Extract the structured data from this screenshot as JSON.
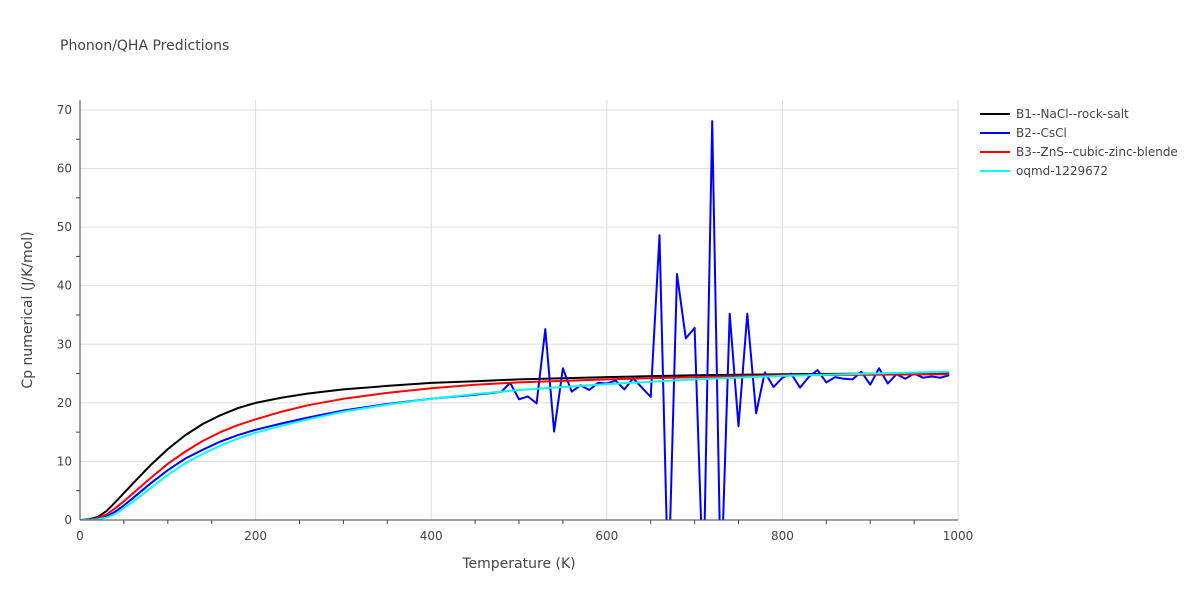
{
  "chart_data": {
    "type": "line",
    "title": "Phonon/QHA Predictions",
    "xlabel": "Temperature (K)",
    "ylabel": "Cp numerical (J/K/mol)",
    "xlim": [
      0,
      1000
    ],
    "ylim": [
      0,
      72
    ],
    "xticks": [
      0,
      200,
      400,
      600,
      800,
      1000
    ],
    "yticks": [
      0,
      10,
      20,
      30,
      40,
      50,
      60,
      70
    ],
    "grid": true,
    "legend_position": "top-right",
    "series": [
      {
        "name": "B1--NaCl--rock-salt",
        "color": "#000000",
        "x": [
          0,
          10,
          20,
          30,
          40,
          50,
          60,
          80,
          100,
          120,
          140,
          160,
          180,
          200,
          230,
          260,
          300,
          350,
          400,
          450,
          500,
          600,
          700,
          800,
          900,
          990
        ],
        "y": [
          0,
          0.1,
          0.5,
          1.5,
          3,
          4.6,
          6.2,
          9.3,
          12.1,
          14.5,
          16.4,
          17.9,
          19.1,
          20.0,
          20.9,
          21.6,
          22.3,
          22.9,
          23.4,
          23.7,
          24.0,
          24.4,
          24.7,
          24.9,
          25.0,
          25.1
        ]
      },
      {
        "name": "B2--CsCl",
        "color": "#0000ff",
        "x": [
          0,
          10,
          20,
          30,
          40,
          50,
          60,
          80,
          100,
          120,
          140,
          160,
          180,
          200,
          230,
          260,
          300,
          350,
          400,
          450,
          470,
          480,
          490,
          500,
          510,
          520,
          530,
          540,
          550,
          560,
          570,
          580,
          590,
          600,
          610,
          620,
          630,
          640,
          650,
          660,
          670,
          680,
          690,
          700,
          710,
          720,
          730,
          740,
          750,
          760,
          770,
          780,
          790,
          800,
          810,
          820,
          830,
          840,
          850,
          860,
          870,
          880,
          890,
          900,
          910,
          920,
          930,
          940,
          950,
          960,
          970,
          980,
          990
        ],
        "y": [
          0,
          0,
          0.2,
          0.6,
          1.4,
          2.5,
          3.7,
          6.2,
          8.5,
          10.5,
          12.0,
          13.4,
          14.5,
          15.4,
          16.5,
          17.5,
          18.7,
          19.8,
          20.7,
          21.4,
          21.7,
          21.9,
          23.4,
          20.6,
          21.1,
          19.9,
          32.6,
          15.1,
          25.9,
          21.9,
          23.0,
          22.2,
          23.4,
          23.3,
          23.8,
          22.3,
          24.2,
          22.6,
          21.0,
          48.6,
          -12,
          42.0,
          31.0,
          32.8,
          -12,
          68.1,
          -12,
          35.2,
          16.0,
          35.2,
          18.2,
          25.2,
          22.7,
          24.3,
          25.0,
          22.6,
          24.4,
          25.6,
          23.5,
          24.4,
          24.1,
          24.0,
          25.3,
          23.1,
          25.9,
          23.3,
          24.9,
          24.1,
          25.0,
          24.3,
          24.5,
          24.3,
          24.7
        ]
      },
      {
        "name": "B3--ZnS--cubic-zinc-blende",
        "color": "#ff0000",
        "x": [
          0,
          10,
          20,
          30,
          40,
          50,
          60,
          80,
          100,
          120,
          140,
          160,
          180,
          200,
          230,
          260,
          300,
          350,
          400,
          450,
          500,
          600,
          700,
          800,
          900,
          990
        ],
        "y": [
          0,
          0,
          0.3,
          0.9,
          2.0,
          3.2,
          4.5,
          7.1,
          9.6,
          11.7,
          13.5,
          15.0,
          16.2,
          17.2,
          18.5,
          19.6,
          20.7,
          21.7,
          22.5,
          23.1,
          23.5,
          24.0,
          24.4,
          24.7,
          24.8,
          24.9
        ]
      },
      {
        "name": "oqmd-1229672",
        "color": "#00ffff",
        "x": [
          0,
          10,
          20,
          30,
          40,
          50,
          60,
          80,
          100,
          120,
          140,
          160,
          180,
          200,
          230,
          260,
          300,
          350,
          400,
          450,
          500,
          600,
          700,
          800,
          900,
          990
        ],
        "y": [
          0,
          0,
          0.1,
          0.4,
          1.0,
          2.0,
          3.1,
          5.4,
          7.7,
          9.7,
          11.3,
          12.7,
          13.9,
          14.9,
          16.1,
          17.2,
          18.5,
          19.7,
          20.7,
          21.5,
          22.2,
          23.2,
          24.0,
          24.6,
          25.0,
          25.3
        ]
      }
    ]
  }
}
